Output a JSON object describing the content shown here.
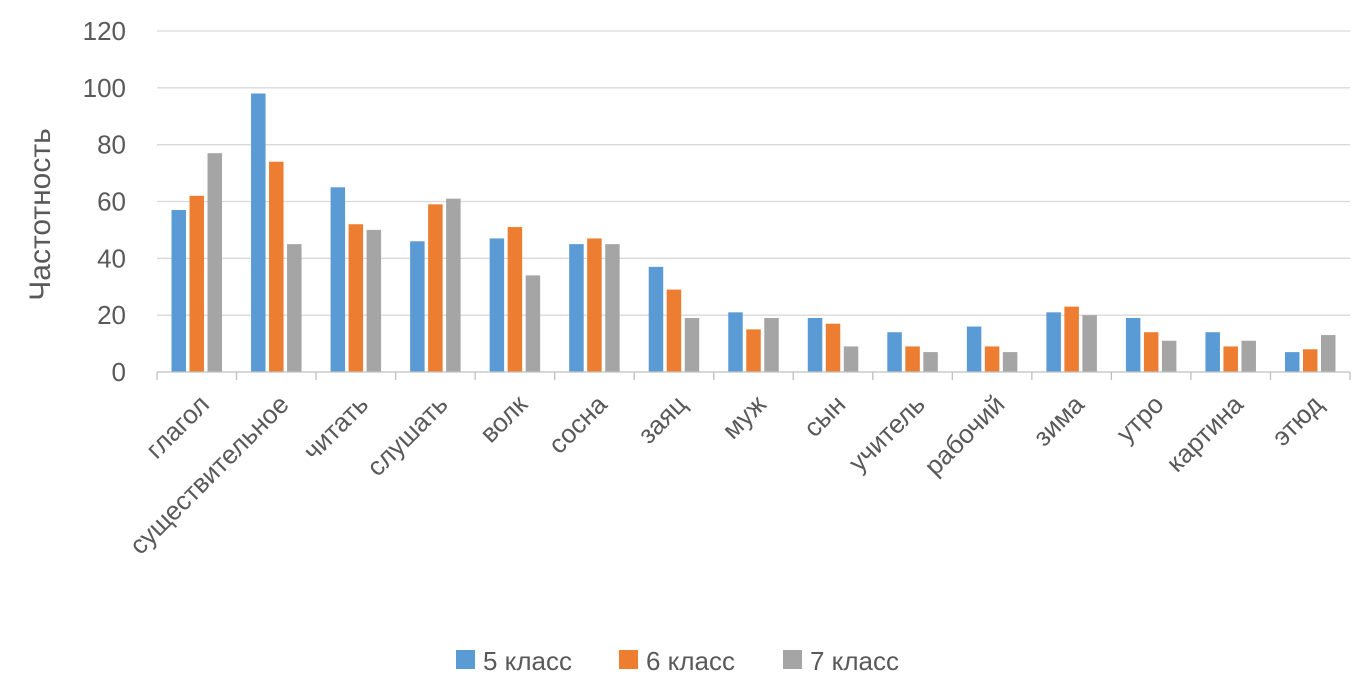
{
  "chart_data": {
    "type": "bar",
    "title": "",
    "xlabel": "",
    "ylabel": "Частотность",
    "ylim": [
      0,
      120
    ],
    "yticks": [
      0,
      20,
      40,
      60,
      80,
      100,
      120
    ],
    "grid": true,
    "legend_position": "bottom",
    "categories": [
      "глагол",
      "существительное",
      "читать",
      "слушать",
      "волк",
      "сосна",
      "заяц",
      "муж",
      "сын",
      "учитель",
      "рабочий",
      "зима",
      "утро",
      "картина",
      "этюд"
    ],
    "series": [
      {
        "name": "5 класс",
        "color": "#5b9bd5",
        "values": [
          57,
          98,
          65,
          46,
          47,
          45,
          37,
          21,
          19,
          14,
          16,
          21,
          19,
          14,
          7
        ]
      },
      {
        "name": "6 класс",
        "color": "#ed7d31",
        "values": [
          62,
          74,
          52,
          59,
          51,
          47,
          29,
          15,
          17,
          9,
          9,
          23,
          14,
          9,
          8
        ]
      },
      {
        "name": "7 класс",
        "color": "#a5a5a5",
        "values": [
          77,
          45,
          50,
          61,
          34,
          45,
          19,
          19,
          9,
          7,
          7,
          20,
          11,
          11,
          13
        ]
      }
    ]
  }
}
